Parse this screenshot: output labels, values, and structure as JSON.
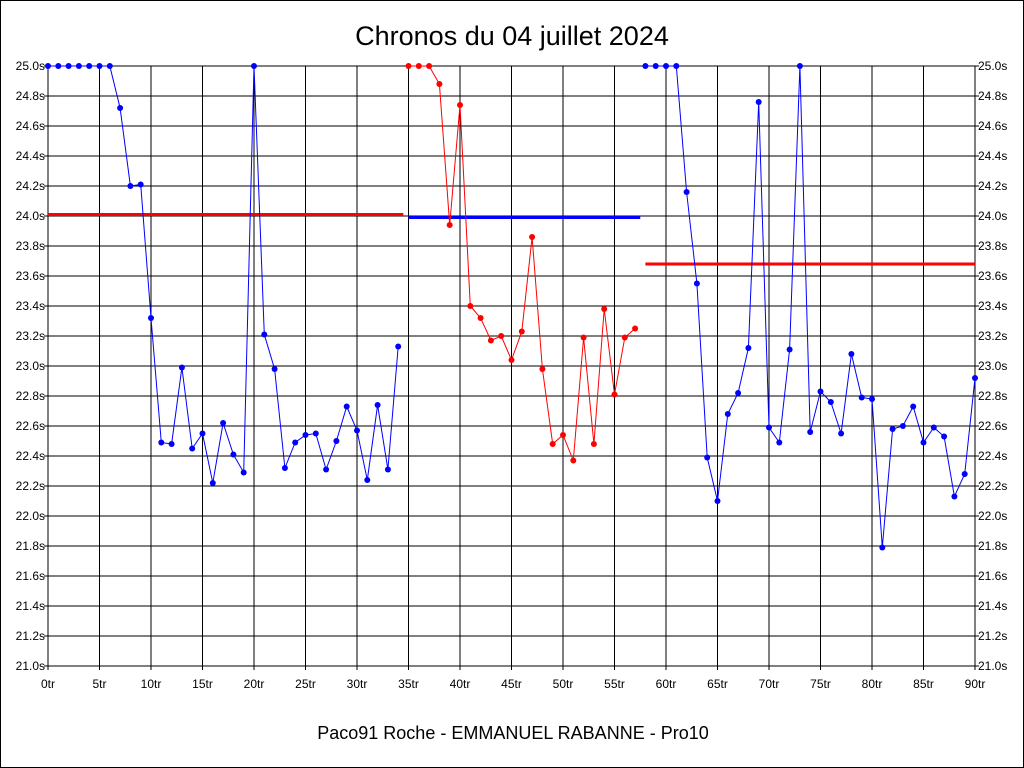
{
  "chart_data": {
    "type": "line",
    "title": "Chronos du 04 juillet 2024",
    "subtitle": "Paco91 Roche - EMMANUEL RABANNE - Pro10",
    "xlim": [
      0,
      90
    ],
    "ylim": [
      21.0,
      25.0
    ],
    "x_ticks": [
      "0tr",
      "5tr",
      "10tr",
      "15tr",
      "20tr",
      "25tr",
      "30tr",
      "35tr",
      "40tr",
      "45tr",
      "50tr",
      "55tr",
      "60tr",
      "65tr",
      "70tr",
      "75tr",
      "80tr",
      "85tr",
      "90tr"
    ],
    "y_ticks": [
      "25.0s",
      "24.8s",
      "24.6s",
      "24.4s",
      "24.2s",
      "24.0s",
      "23.8s",
      "23.6s",
      "23.4s",
      "23.2s",
      "23.0s",
      "22.8s",
      "22.6s",
      "22.4s",
      "22.2s",
      "22.0s",
      "21.8s",
      "21.6s",
      "21.4s",
      "21.2s",
      "21.0s"
    ],
    "grid": true,
    "series": [
      {
        "color": "#0000ff",
        "x": [
          0,
          1,
          2,
          3,
          4,
          5,
          6,
          7,
          8,
          9,
          10,
          11,
          12,
          13,
          14,
          15,
          16,
          17,
          18,
          19,
          20,
          21,
          22,
          23,
          24,
          25,
          26,
          27,
          28,
          29,
          30,
          31,
          32,
          33,
          34
        ],
        "y": [
          25.0,
          25.0,
          25.0,
          25.0,
          25.0,
          25.0,
          25.0,
          24.72,
          24.2,
          24.21,
          23.32,
          22.49,
          22.48,
          22.99,
          22.45,
          22.55,
          22.22,
          22.62,
          22.41,
          22.29,
          25.0,
          23.21,
          22.98,
          22.32,
          22.49,
          22.54,
          22.55,
          22.31,
          22.5,
          22.73,
          22.57,
          22.24,
          22.74,
          22.31,
          23.13
        ]
      },
      {
        "color": "#ff0000",
        "x": [
          35,
          36,
          37,
          38,
          39,
          40,
          41,
          42,
          43,
          44,
          45,
          46,
          47,
          48,
          49,
          50,
          51,
          52,
          53,
          54,
          55,
          56,
          57
        ],
        "y": [
          25.0,
          25.0,
          25.0,
          24.88,
          23.94,
          24.74,
          23.4,
          23.32,
          23.17,
          23.2,
          23.04,
          23.23,
          23.86,
          22.98,
          22.48,
          22.54,
          22.37,
          23.19,
          22.48,
          23.38,
          22.81,
          23.19,
          23.25
        ]
      },
      {
        "color": "#0000ff",
        "x": [
          58,
          59,
          60,
          61,
          62,
          63,
          64,
          65,
          66,
          67,
          68,
          69,
          70,
          71,
          72,
          73,
          74,
          75,
          76,
          77,
          78,
          79,
          80,
          81,
          82,
          83,
          84,
          85,
          86,
          87,
          88,
          89,
          90
        ],
        "y": [
          25.0,
          25.0,
          25.0,
          25.0,
          24.16,
          23.55,
          22.39,
          22.1,
          22.68,
          22.82,
          23.12,
          24.76,
          22.59,
          22.49,
          23.11,
          25.0,
          22.56,
          22.83,
          22.76,
          22.55,
          23.08,
          22.79,
          22.78,
          21.79,
          22.58,
          22.6,
          22.73,
          22.49,
          22.59,
          22.53,
          22.13,
          22.28,
          22.92
        ]
      }
    ],
    "averages": [
      {
        "color": "#ff0000",
        "x": [
          0,
          34.5
        ],
        "value": 24.01
      },
      {
        "color": "#0000ff",
        "x": [
          35,
          57.5
        ],
        "value": 23.99
      },
      {
        "color": "#ff0000",
        "x": [
          58,
          90
        ],
        "value": 23.68
      }
    ]
  }
}
